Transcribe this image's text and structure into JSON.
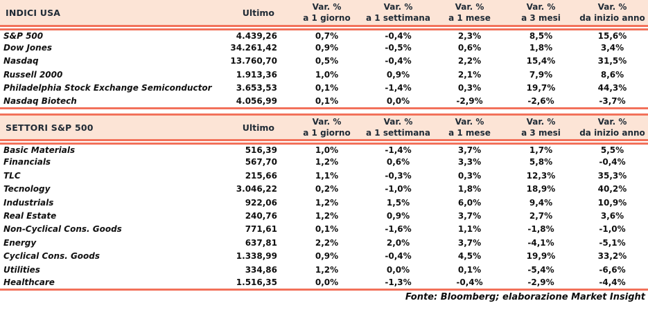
{
  "colors": {
    "header_background": "#FCE4D6",
    "accent_rule": "#F2715A",
    "header_text": "#202B36",
    "body_text": "#101010"
  },
  "columns": {
    "ultimo_label": "Ultimo",
    "var_headers": [
      {
        "line1": "Var. %",
        "line2": "a 1 giorno"
      },
      {
        "line1": "Var. %",
        "line2": "a 1 settimana"
      },
      {
        "line1": "Var. %",
        "line2": "a 1 mese"
      },
      {
        "line1": "Var. %",
        "line2": "a 3 mesi"
      },
      {
        "line1": "Var. %",
        "line2": "da inizio anno"
      }
    ]
  },
  "tables": [
    {
      "title": "INDICI USA",
      "rows": [
        {
          "name": "S&P 500",
          "ultimo": "4.439,26",
          "vars": [
            "0,7%",
            "-0,4%",
            "2,3%",
            "8,5%",
            "15,6%"
          ]
        },
        {
          "name": "Dow Jones",
          "ultimo": "34.261,42",
          "vars": [
            "0,9%",
            "-0,5%",
            "0,6%",
            "1,8%",
            "3,4%"
          ]
        },
        {
          "name": "Nasdaq",
          "ultimo": "13.760,70",
          "vars": [
            "0,5%",
            "-0,4%",
            "2,2%",
            "15,4%",
            "31,5%"
          ]
        },
        {
          "name": "Russell 2000",
          "ultimo": "1.913,36",
          "vars": [
            "1,0%",
            "0,9%",
            "2,1%",
            "7,9%",
            "8,6%"
          ]
        },
        {
          "name": "Philadelphia Stock Exchange Semiconductor",
          "ultimo": "3.653,53",
          "vars": [
            "0,1%",
            "-1,4%",
            "0,3%",
            "19,7%",
            "44,3%"
          ]
        },
        {
          "name": "Nasdaq Biotech",
          "ultimo": "4.056,99",
          "vars": [
            "0,1%",
            "0,0%",
            "-2,9%",
            "-2,6%",
            "-3,7%"
          ]
        }
      ]
    },
    {
      "title": "SETTORI S&P 500",
      "rows": [
        {
          "name": "Basic Materials",
          "ultimo": "516,39",
          "vars": [
            "1,0%",
            "-1,4%",
            "3,7%",
            "1,7%",
            "5,5%"
          ]
        },
        {
          "name": "Financials",
          "ultimo": "567,70",
          "vars": [
            "1,2%",
            "0,6%",
            "3,3%",
            "5,8%",
            "-0,4%"
          ]
        },
        {
          "name": "TLC",
          "ultimo": "215,66",
          "vars": [
            "1,1%",
            "-0,3%",
            "0,3%",
            "12,3%",
            "35,3%"
          ]
        },
        {
          "name": "Tecnology",
          "ultimo": "3.046,22",
          "vars": [
            "0,2%",
            "-1,0%",
            "1,8%",
            "18,9%",
            "40,2%"
          ]
        },
        {
          "name": "Industrials",
          "ultimo": "922,06",
          "vars": [
            "1,2%",
            "1,5%",
            "6,0%",
            "9,4%",
            "10,9%"
          ]
        },
        {
          "name": "Real Estate",
          "ultimo": "240,76",
          "vars": [
            "1,2%",
            "0,9%",
            "3,7%",
            "2,7%",
            "3,6%"
          ]
        },
        {
          "name": "Non-Cyclical Cons. Goods",
          "ultimo": "771,61",
          "vars": [
            "0,1%",
            "-1,6%",
            "1,1%",
            "-1,8%",
            "-1,0%"
          ]
        },
        {
          "name": "Energy",
          "ultimo": "637,81",
          "vars": [
            "2,2%",
            "2,0%",
            "3,7%",
            "-4,1%",
            "-5,1%"
          ]
        },
        {
          "name": "Cyclical Cons. Goods",
          "ultimo": "1.338,99",
          "vars": [
            "0,9%",
            "-0,4%",
            "4,5%",
            "19,9%",
            "33,2%"
          ]
        },
        {
          "name": "Utilities",
          "ultimo": "334,86",
          "vars": [
            "1,2%",
            "0,0%",
            "0,1%",
            "-5,4%",
            "-6,6%"
          ]
        },
        {
          "name": "Healthcare",
          "ultimo": "1.516,35",
          "vars": [
            "0,0%",
            "-1,3%",
            "-0,4%",
            "-2,9%",
            "-4,4%"
          ]
        }
      ]
    }
  ],
  "footer": {
    "text": "Fonte: Bloomberg; elaborazione Market Insight"
  }
}
